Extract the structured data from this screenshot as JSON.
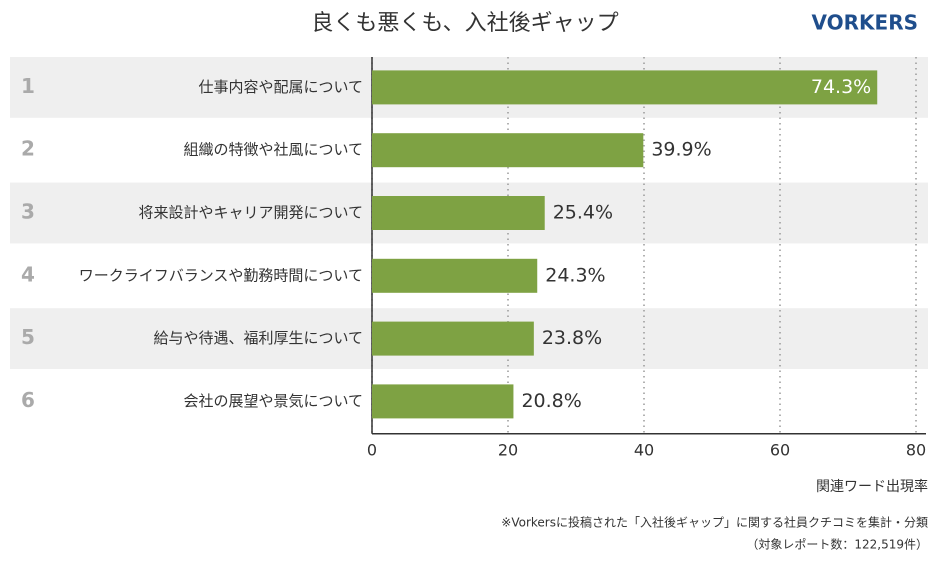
{
  "chart_data": {
    "type": "bar",
    "orientation": "horizontal",
    "title": "良くも悪くも、入社後ギャップ",
    "logo": "VORKERS",
    "ranks": [
      1,
      2,
      3,
      4,
      5,
      6
    ],
    "categories": [
      "仕事内容や配属について",
      "組織の特徴や社風について",
      "将来設計やキャリア開発について",
      "ワークライフバランスや勤務時間について",
      "給与や待遇、福利厚生について",
      "会社の展望や景気について"
    ],
    "values": [
      74.3,
      39.9,
      25.4,
      24.3,
      23.8,
      20.8
    ],
    "value_labels": [
      "74.3%",
      "39.9%",
      "25.4%",
      "24.3%",
      "23.8%",
      "20.8%"
    ],
    "color": "#7ea243",
    "xlim": [
      0,
      80
    ],
    "xticks": [
      0,
      20,
      40,
      60,
      80
    ],
    "grid": true,
    "xlabel": "関連ワード出現率",
    "notes": [
      "※Vorkersに投稿された「入社後ギャップ」に関する社員クチコミを集計・分類",
      "（対象レポート数：122,519件）"
    ]
  }
}
